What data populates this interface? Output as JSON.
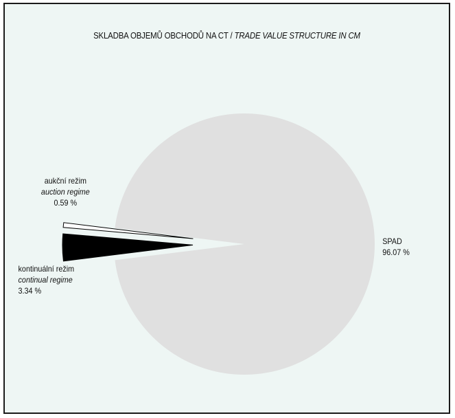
{
  "chart_data": {
    "type": "pie",
    "title_cz": "SKLADBA OBJEMŮ OBCHODŮ NA CT",
    "title_separator": " / ",
    "title_en": "TRADE VALUE STRUCTURE IN CM",
    "slices": [
      {
        "label_cz": "SPAD",
        "label_en": "",
        "value": 96.07,
        "value_text": "96.07 %",
        "color": "#e0e0e0",
        "exploded": false
      },
      {
        "label_cz": "kontinuální režim",
        "label_en": "continual regime",
        "value": 3.34,
        "value_text": "3.34 %",
        "color": "#000000",
        "exploded": true
      },
      {
        "label_cz": "aukční režim",
        "label_en": "auction regime",
        "value": 0.59,
        "value_text": "0.59 %",
        "color": "#ffffff",
        "exploded": true
      }
    ]
  }
}
